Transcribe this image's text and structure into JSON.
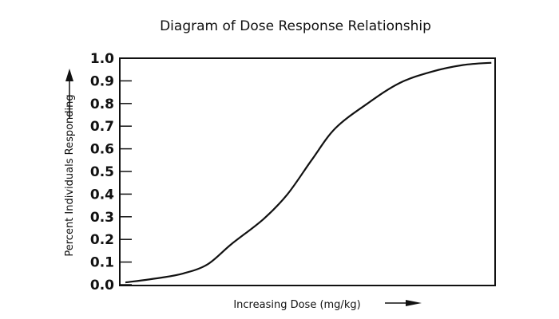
{
  "chart_data": {
    "type": "line",
    "title": "Diagram of Dose Response Relationship",
    "xlabel": "Increasing Dose (mg/kg)",
    "ylabel": "Percent Individuals Responding",
    "ylim": [
      0,
      1
    ],
    "xlim": [
      0,
      100
    ],
    "yticks": [
      "0.0",
      "0.1",
      "0.2",
      "0.3",
      "0.4",
      "0.5",
      "0.6",
      "0.7",
      "0.8",
      "0.9",
      "1.0"
    ],
    "grid": false,
    "series": [
      {
        "name": "Dose response",
        "x": [
          1.5,
          10.6,
          17,
          23.4,
          29.8,
          38.3,
          44.7,
          51.1,
          57.4,
          66,
          74.5,
          83,
          91.5,
          99
        ],
        "y": [
          0.01,
          0.03,
          0.05,
          0.09,
          0.18,
          0.29,
          0.4,
          0.55,
          0.69,
          0.8,
          0.89,
          0.94,
          0.97,
          0.98
        ]
      }
    ]
  }
}
